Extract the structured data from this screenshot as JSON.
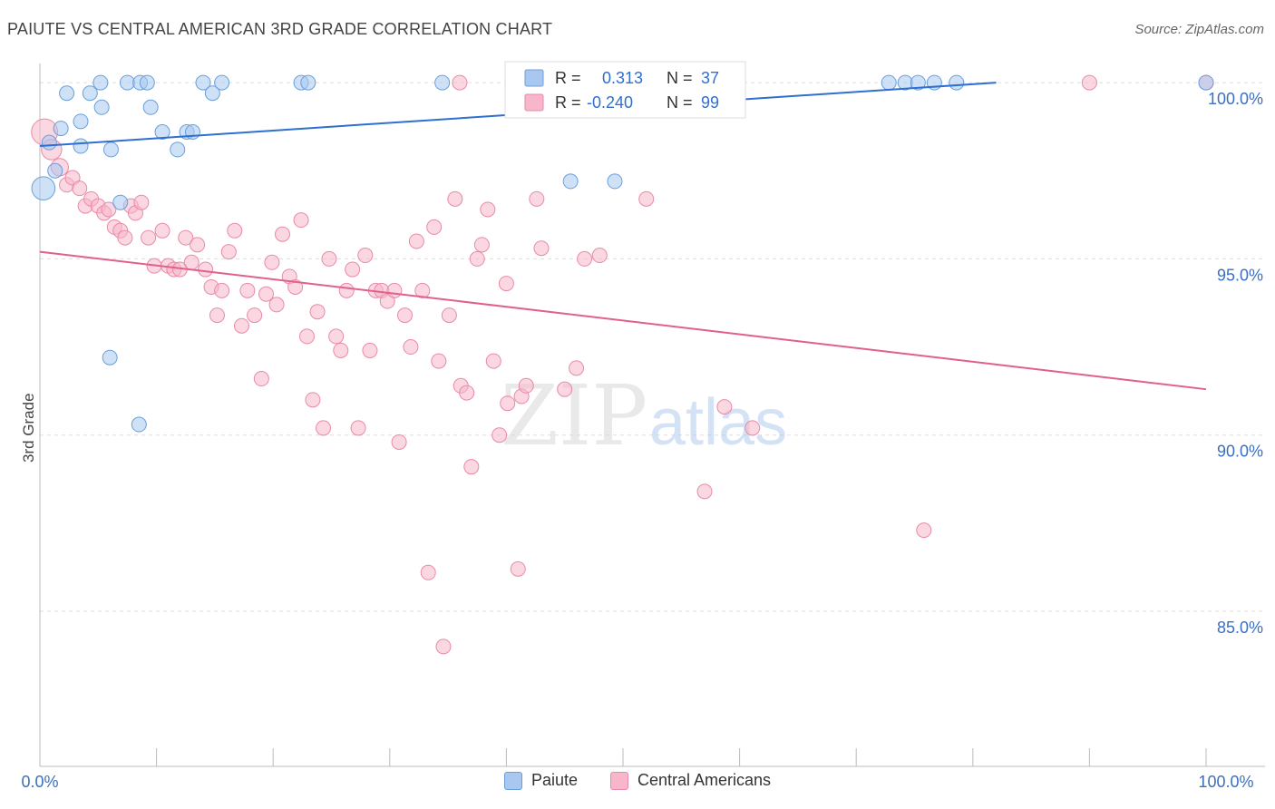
{
  "header": {
    "title": "PAIUTE VS CENTRAL AMERICAN 3RD GRADE CORRELATION CHART",
    "source": "Source: ZipAtlas.com"
  },
  "watermark": {
    "zip": "ZIP",
    "atlas": "atlas"
  },
  "legend_box": {
    "rows": [
      {
        "r_label": "R = ",
        "r_value": "0.313",
        "n_label": "N = ",
        "n_value": "37"
      },
      {
        "r_label": "R = ",
        "r_value": "-0.240",
        "n_label": "N = ",
        "n_value": "99"
      }
    ]
  },
  "colors": {
    "paiute_fill": "#a8c8f0",
    "paiute_stroke": "#6a9fd8",
    "paiute_line": "#2f6fcf",
    "central_fill": "#f7b6ca",
    "central_stroke": "#e88aa8",
    "central_line": "#e0608e",
    "axis_text": "#3a6fc4",
    "grid": "#dddddd"
  },
  "chart_data": {
    "type": "scatter",
    "title": "PAIUTE VS CENTRAL AMERICAN 3RD GRADE CORRELATION CHART",
    "xlabel": "",
    "ylabel": "3rd Grade",
    "xlim": [
      0,
      100
    ],
    "ylim": [
      80.6,
      100.8
    ],
    "x_tick_labels": [
      "0.0%",
      "100.0%"
    ],
    "y_tick_labels": [
      "100.0%",
      "95.0%",
      "90.0%",
      "85.0%"
    ],
    "y_ticks": [
      100,
      95,
      90,
      85
    ],
    "grid": true,
    "legend_position": "top-center",
    "series": [
      {
        "name": "Paiute",
        "r": 0.313,
        "n": 37,
        "trend": {
          "x": [
            0,
            82
          ],
          "y": [
            98.2,
            100.0
          ]
        },
        "points": [
          [
            0.3,
            97.0,
            16
          ],
          [
            0.8,
            98.3,
            10
          ],
          [
            1.3,
            97.5,
            10
          ],
          [
            1.8,
            98.7,
            10
          ],
          [
            2.3,
            99.7,
            10
          ],
          [
            3.5,
            98.9,
            10
          ],
          [
            3.5,
            98.2,
            10
          ],
          [
            4.3,
            99.7,
            10
          ],
          [
            5.3,
            99.3,
            10
          ],
          [
            5.2,
            100.0,
            10
          ],
          [
            6.1,
            98.1,
            10
          ],
          [
            6.0,
            92.2,
            10
          ],
          [
            6.9,
            96.6,
            10
          ],
          [
            7.5,
            100.0,
            10
          ],
          [
            8.6,
            100.0,
            10
          ],
          [
            9.2,
            100.0,
            10
          ],
          [
            8.5,
            90.3,
            10
          ],
          [
            9.5,
            99.3,
            10
          ],
          [
            10.5,
            98.6,
            10
          ],
          [
            11.8,
            98.1,
            10
          ],
          [
            12.6,
            98.6,
            10
          ],
          [
            13.1,
            98.6,
            10
          ],
          [
            14.0,
            100.0,
            10
          ],
          [
            14.8,
            99.7,
            10
          ],
          [
            15.6,
            100.0,
            10
          ],
          [
            22.4,
            100.0,
            10
          ],
          [
            23.0,
            100.0,
            10
          ],
          [
            34.5,
            100.0,
            10
          ],
          [
            45.5,
            100.0,
            10
          ],
          [
            45.5,
            97.2,
            10
          ],
          [
            49.3,
            97.2,
            10
          ],
          [
            72.8,
            100.0,
            10
          ],
          [
            74.2,
            100.0,
            10
          ],
          [
            75.3,
            100.0,
            10
          ],
          [
            76.7,
            100.0,
            10
          ],
          [
            78.6,
            100.0,
            10
          ],
          [
            100.0,
            100.0,
            10
          ]
        ]
      },
      {
        "name": "Central Americans",
        "r": -0.24,
        "n": 99,
        "trend": {
          "x": [
            0,
            100
          ],
          "y": [
            95.2,
            91.3
          ]
        },
        "points": [
          [
            0.4,
            98.6,
            18
          ],
          [
            1.0,
            98.1,
            14
          ],
          [
            1.7,
            97.6,
            12
          ],
          [
            2.3,
            97.1,
            10
          ],
          [
            2.8,
            97.3,
            10
          ],
          [
            3.4,
            97.0,
            10
          ],
          [
            3.9,
            96.5,
            10
          ],
          [
            4.4,
            96.7,
            10
          ],
          [
            5.0,
            96.5,
            10
          ],
          [
            5.5,
            96.3,
            10
          ],
          [
            5.9,
            96.4,
            10
          ],
          [
            6.4,
            95.9,
            10
          ],
          [
            6.9,
            95.8,
            10
          ],
          [
            7.3,
            95.6,
            10
          ],
          [
            7.8,
            96.5,
            10
          ],
          [
            8.2,
            96.3,
            10
          ],
          [
            8.7,
            96.6,
            10
          ],
          [
            9.3,
            95.6,
            10
          ],
          [
            9.8,
            94.8,
            10
          ],
          [
            10.5,
            95.8,
            10
          ],
          [
            11.0,
            94.8,
            10
          ],
          [
            11.5,
            94.7,
            10
          ],
          [
            12.0,
            94.7,
            10
          ],
          [
            12.5,
            95.6,
            10
          ],
          [
            13.0,
            94.9,
            10
          ],
          [
            13.5,
            95.4,
            10
          ],
          [
            14.2,
            94.7,
            10
          ],
          [
            14.7,
            94.2,
            10
          ],
          [
            15.2,
            93.4,
            10
          ],
          [
            15.6,
            94.1,
            10
          ],
          [
            16.2,
            95.2,
            10
          ],
          [
            16.7,
            95.8,
            10
          ],
          [
            17.3,
            93.1,
            10
          ],
          [
            17.8,
            94.1,
            10
          ],
          [
            18.4,
            93.4,
            10
          ],
          [
            19.0,
            91.6,
            10
          ],
          [
            19.4,
            94.0,
            10
          ],
          [
            19.9,
            94.9,
            10
          ],
          [
            20.3,
            93.7,
            10
          ],
          [
            20.8,
            95.7,
            10
          ],
          [
            21.4,
            94.5,
            10
          ],
          [
            21.9,
            94.2,
            10
          ],
          [
            22.4,
            96.1,
            10
          ],
          [
            22.9,
            92.8,
            10
          ],
          [
            23.4,
            91.0,
            10
          ],
          [
            23.8,
            93.5,
            10
          ],
          [
            24.3,
            90.2,
            10
          ],
          [
            24.8,
            95.0,
            10
          ],
          [
            25.4,
            92.8,
            10
          ],
          [
            25.8,
            92.4,
            10
          ],
          [
            26.3,
            94.1,
            10
          ],
          [
            26.8,
            94.7,
            10
          ],
          [
            27.3,
            90.2,
            10
          ],
          [
            27.9,
            95.1,
            10
          ],
          [
            28.3,
            92.4,
            10
          ],
          [
            28.8,
            94.1,
            10
          ],
          [
            29.3,
            94.1,
            10
          ],
          [
            29.8,
            93.8,
            10
          ],
          [
            30.4,
            94.1,
            10
          ],
          [
            30.8,
            89.8,
            10
          ],
          [
            31.3,
            93.4,
            10
          ],
          [
            31.8,
            92.5,
            10
          ],
          [
            32.3,
            95.5,
            10
          ],
          [
            32.8,
            94.1,
            10
          ],
          [
            33.3,
            86.1,
            10
          ],
          [
            33.8,
            95.9,
            10
          ],
          [
            34.2,
            92.1,
            10
          ],
          [
            35.1,
            93.4,
            10
          ],
          [
            34.6,
            84.0,
            10
          ],
          [
            35.6,
            96.7,
            10
          ],
          [
            36.1,
            91.4,
            10
          ],
          [
            36.6,
            91.2,
            10
          ],
          [
            37.0,
            89.1,
            10
          ],
          [
            37.5,
            95.0,
            10
          ],
          [
            37.9,
            95.4,
            10
          ],
          [
            38.4,
            96.4,
            10
          ],
          [
            38.9,
            92.1,
            10
          ],
          [
            39.4,
            90.0,
            10
          ],
          [
            40.0,
            94.3,
            10
          ],
          [
            40.1,
            90.9,
            10
          ],
          [
            41.0,
            86.2,
            10
          ],
          [
            41.3,
            91.1,
            10
          ],
          [
            41.7,
            91.4,
            10
          ],
          [
            42.6,
            96.7,
            10
          ],
          [
            43.0,
            95.3,
            10
          ],
          [
            45.0,
            91.3,
            10
          ],
          [
            46.0,
            91.9,
            10
          ],
          [
            46.7,
            95.0,
            10
          ],
          [
            48.0,
            95.1,
            10
          ],
          [
            52.0,
            96.7,
            10
          ],
          [
            57.0,
            88.4,
            10
          ],
          [
            58.7,
            90.8,
            10
          ],
          [
            61.1,
            90.2,
            10
          ],
          [
            57.3,
            100.0,
            10
          ],
          [
            75.8,
            87.3,
            10
          ],
          [
            90.0,
            100.0,
            10
          ],
          [
            100.0,
            100.0,
            10
          ],
          [
            45.0,
            100.0,
            10
          ],
          [
            36.0,
            100.0,
            10
          ]
        ]
      }
    ]
  }
}
